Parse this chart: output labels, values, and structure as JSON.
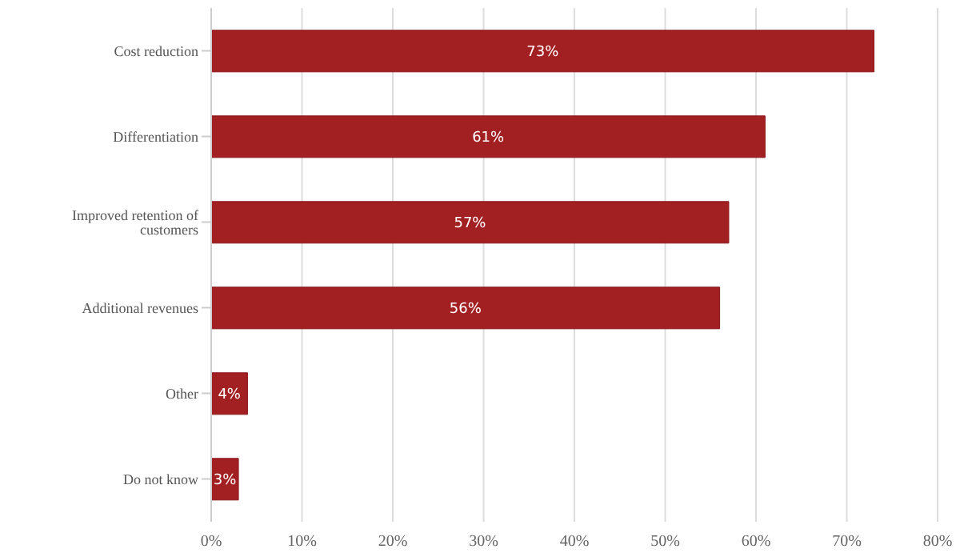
{
  "chart_data": {
    "type": "bar",
    "orientation": "horizontal",
    "categories": [
      "Cost reduction",
      "Differentiation",
      "Improved retention of customers",
      "Additional revenues",
      "Other",
      "Do not know"
    ],
    "values": [
      73,
      61,
      57,
      56,
      4,
      3
    ],
    "color": "#a21f22",
    "value_labels": [
      "73%",
      "61%",
      "57%",
      "56%",
      "4%",
      "3%"
    ],
    "xlim": [
      0,
      80
    ],
    "xticks": [
      {
        "value": 0,
        "label": "0%"
      },
      {
        "value": 10,
        "label": "10%"
      },
      {
        "value": 20,
        "label": "20%"
      },
      {
        "value": 30,
        "label": "30%"
      },
      {
        "value": 40,
        "label": "40%"
      },
      {
        "value": 50,
        "label": "50%"
      },
      {
        "value": 60,
        "label": "60%"
      },
      {
        "value": 70,
        "label": "70%"
      },
      {
        "value": 80,
        "label": "80%"
      }
    ],
    "grid": "x"
  }
}
